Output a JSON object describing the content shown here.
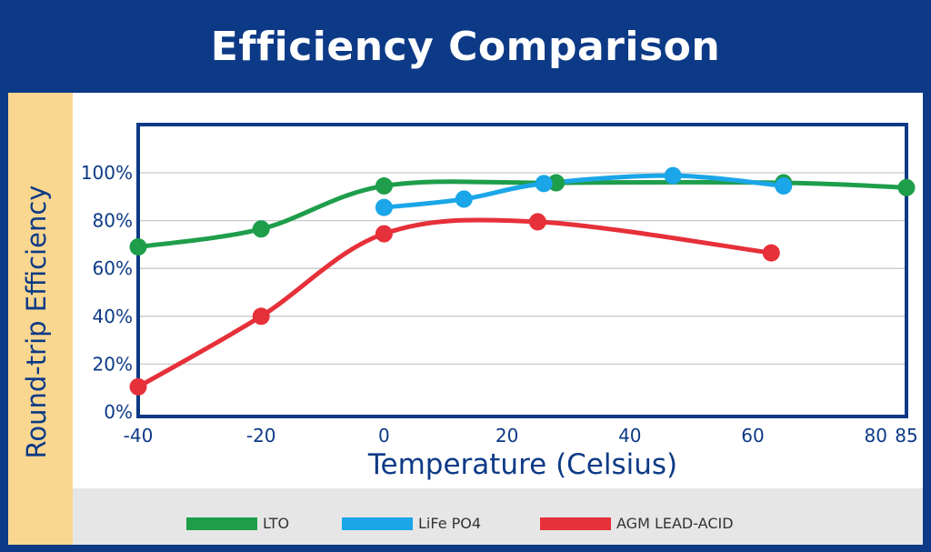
{
  "chart_data": {
    "type": "line",
    "title": "Efficiency Comparison",
    "xlabel": "Temperature (Celsius)",
    "ylabel": "Round-trip Efficiency",
    "x_ticks": [
      -40,
      -20,
      0,
      20,
      40,
      60,
      80,
      85
    ],
    "x_tick_labels": [
      "-40",
      "-20",
      "0",
      "20",
      "40",
      "60",
      "80",
      "85"
    ],
    "y_ticks": [
      0,
      20,
      40,
      60,
      80,
      100
    ],
    "y_tick_labels": [
      "0%",
      "20%",
      "40%",
      "60%",
      "80%",
      "100%"
    ],
    "xlim": [
      -40,
      85
    ],
    "ylim": [
      0,
      118
    ],
    "grid": "horizontal",
    "legend_position": "bottom",
    "series": [
      {
        "name": "LTO",
        "color": "#1e9e4b",
        "x": [
          -40,
          -20,
          0,
          28,
          65,
          85
        ],
        "y": [
          69,
          76.5,
          94.5,
          95.8,
          95.8,
          93.8
        ]
      },
      {
        "name": "LiFe PO4",
        "color": "#1aa6e8",
        "x": [
          0,
          13,
          26,
          47,
          65
        ],
        "y": [
          85.5,
          89,
          95.5,
          98.8,
          94.5
        ]
      },
      {
        "name": "AGM LEAD-ACID",
        "color": "#e6303a",
        "x": [
          -40,
          -20,
          0,
          25,
          63
        ],
        "y": [
          10.5,
          40,
          74.5,
          79.5,
          66.5
        ]
      }
    ]
  }
}
